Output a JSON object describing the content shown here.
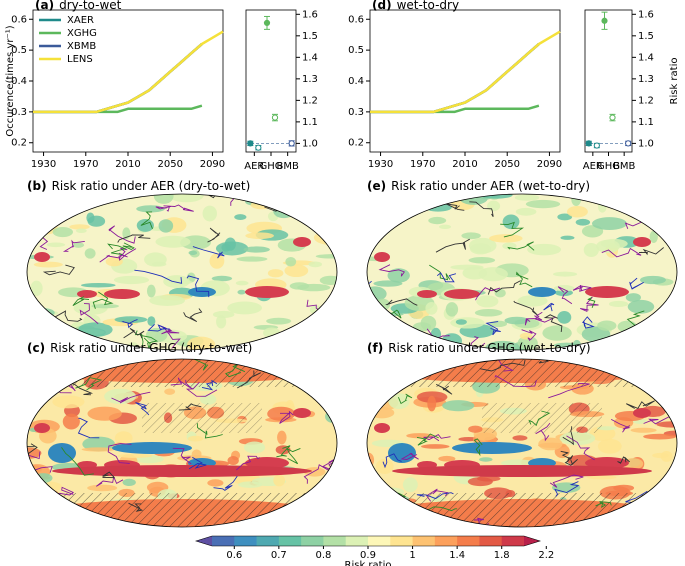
{
  "chart_data": [
    {
      "type": "line",
      "label": "(a)",
      "title": "dry-to-wet",
      "ylabel": "Occurence(times yr⁻¹)",
      "x": [
        1920,
        1930,
        1940,
        1950,
        1960,
        1970,
        1980,
        1990,
        2000,
        2010,
        2020,
        2030,
        2040,
        2050,
        2060,
        2070,
        2080,
        2090,
        2100
      ],
      "xlim": [
        1920,
        2100
      ],
      "xticks": [
        1930,
        1970,
        2010,
        2050,
        2090
      ],
      "ylim": [
        0.17,
        0.63
      ],
      "yticks": [
        0.2,
        0.3,
        0.4,
        0.5,
        0.6
      ],
      "legend": "upper left",
      "series": [
        {
          "name": "XAER",
          "color": "#1f8a8a",
          "values": [
            0.3,
            0.3,
            0.3,
            0.3,
            0.3,
            0.3,
            0.3,
            0.31,
            0.32,
            0.33,
            0.35,
            0.37,
            0.4,
            0.43,
            0.46,
            0.49,
            0.52,
            null,
            null
          ]
        },
        {
          "name": "XGHG",
          "color": "#5cb85c",
          "values": [
            0.3,
            0.3,
            0.3,
            0.3,
            0.3,
            0.3,
            0.3,
            0.3,
            0.3,
            0.31,
            0.31,
            0.31,
            0.31,
            0.31,
            0.31,
            0.31,
            0.32,
            null,
            null
          ]
        },
        {
          "name": "XBMB",
          "color": "#3b5a9a",
          "values": [
            0.3,
            0.3,
            0.3,
            0.3,
            0.3,
            0.3,
            0.3,
            0.31,
            0.32,
            0.33,
            0.35,
            0.37,
            0.4,
            0.43,
            0.46,
            0.49,
            0.52,
            null,
            null
          ]
        },
        {
          "name": "LENS",
          "color": "#f5e13a",
          "values": [
            0.3,
            0.3,
            0.3,
            0.3,
            0.3,
            0.3,
            0.3,
            0.31,
            0.32,
            0.33,
            0.35,
            0.37,
            0.4,
            0.43,
            0.46,
            0.49,
            0.52,
            0.54,
            0.56
          ]
        }
      ]
    },
    {
      "type": "errorbar",
      "categories": [
        "AER",
        "GHG",
        "BMB"
      ],
      "colors": [
        "#1f8a8a",
        "#5cb85c",
        "#3b5a9a"
      ],
      "ylim": [
        0.96,
        1.62
      ],
      "yticks": [
        {
          "value": 1,
          "label": "1.0"
        },
        1.1,
        1.2,
        1.3,
        1.4,
        1.5,
        1.6
      ],
      "refline": 1,
      "series": [
        {
          "marker": "filled",
          "values": [
            1.0,
            1.56,
            null
          ],
          "errors": [
            0.01,
            0.03,
            null
          ]
        },
        {
          "marker": "open",
          "values": [
            0.98,
            1.12,
            1.0
          ],
          "errors": [
            0.01,
            0.015,
            0.012
          ]
        }
      ]
    },
    {
      "type": "line",
      "label": "(d)",
      "title": "wet-to-dry",
      "x": [
        1920,
        1930,
        1940,
        1950,
        1960,
        1970,
        1980,
        1990,
        2000,
        2010,
        2020,
        2030,
        2040,
        2050,
        2060,
        2070,
        2080,
        2090,
        2100
      ],
      "xlim": [
        1920,
        2100
      ],
      "xticks": [
        1930,
        1970,
        2010,
        2050,
        2090
      ],
      "ylim": [
        0.17,
        0.63
      ],
      "yticks": [
        0.2,
        0.3,
        0.4,
        0.5,
        0.6
      ],
      "series": [
        {
          "color": "#1f8a8a",
          "values": [
            0.3,
            0.3,
            0.3,
            0.3,
            0.3,
            0.3,
            0.3,
            0.31,
            0.32,
            0.33,
            0.35,
            0.37,
            0.4,
            0.43,
            0.46,
            0.49,
            0.52,
            null,
            null
          ]
        },
        {
          "color": "#5cb85c",
          "values": [
            0.3,
            0.3,
            0.3,
            0.3,
            0.3,
            0.3,
            0.3,
            0.3,
            0.3,
            0.31,
            0.31,
            0.31,
            0.31,
            0.31,
            0.31,
            0.31,
            0.32,
            null,
            null
          ]
        },
        {
          "color": "#3b5a9a",
          "values": [
            0.3,
            0.3,
            0.3,
            0.3,
            0.3,
            0.3,
            0.3,
            0.31,
            0.32,
            0.33,
            0.35,
            0.37,
            0.4,
            0.43,
            0.46,
            0.49,
            0.52,
            null,
            null
          ]
        },
        {
          "color": "#f5e13a",
          "values": [
            0.3,
            0.3,
            0.3,
            0.3,
            0.3,
            0.3,
            0.3,
            0.31,
            0.32,
            0.33,
            0.35,
            0.37,
            0.4,
            0.43,
            0.46,
            0.49,
            0.52,
            0.54,
            0.56
          ]
        }
      ]
    },
    {
      "type": "errorbar",
      "categories": [
        "AER",
        "GHG",
        "BMB"
      ],
      "colors": [
        "#1f8a8a",
        "#5cb85c",
        "#3b5a9a"
      ],
      "ylabel": "Risk ratio",
      "ylim": [
        0.96,
        1.62
      ],
      "yticks": [
        {
          "value": 1,
          "label": "1.0"
        },
        1.1,
        1.2,
        1.3,
        1.4,
        1.5,
        1.6
      ],
      "refline": 1,
      "series": [
        {
          "marker": "filled",
          "values": [
            1.0,
            1.57,
            null
          ],
          "errors": [
            0.01,
            0.04,
            null
          ]
        },
        {
          "marker": "open",
          "values": [
            0.99,
            1.12,
            1.0
          ],
          "errors": [
            0.01,
            0.015,
            0.01
          ]
        }
      ]
    },
    {
      "type": "map",
      "label": "(b)",
      "title": "Risk ratio under AER (dry-to-wet)",
      "hatching": false
    },
    {
      "type": "map",
      "label": "(e)",
      "title": "Risk ratio under AER (wet-to-dry)",
      "hatching": false
    },
    {
      "type": "map",
      "label": "(c)",
      "title": "Risk ratio under GHG (dry-to-wet)",
      "hatching": true
    },
    {
      "type": "map",
      "label": "(f)",
      "title": "Risk ratio under GHG (wet-to-dry)",
      "hatching": true
    },
    {
      "type": "colorbar",
      "label": "Risk ratio",
      "ticks": [
        0.6,
        0.7,
        0.8,
        0.9,
        1,
        1.4,
        1.8,
        2.2
      ],
      "colors": [
        "#5e4fa2",
        "#4a6fb5",
        "#3f8fbf",
        "#4fa9b1",
        "#66c2a5",
        "#8ed1a4",
        "#b3e0a6",
        "#dcf1b5",
        "#fdf7b8",
        "#fee491",
        "#fdc272",
        "#fca05c",
        "#f47d4b",
        "#e35a45",
        "#cf3a4a",
        "#b8204a"
      ]
    }
  ]
}
